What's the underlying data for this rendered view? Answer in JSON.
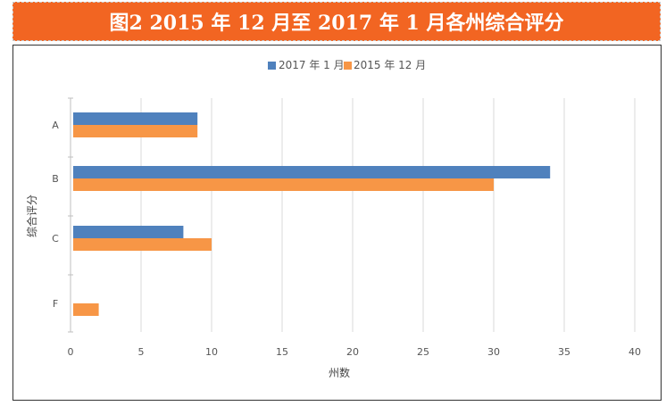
{
  "header": {
    "title": "图2  2015 年 12 月至 2017 年 1 月各州综合评分"
  },
  "colors": {
    "title_bg": "#f26522",
    "series_2017": "#4f81bd",
    "series_2015": "#f79646"
  },
  "chart_data": {
    "type": "bar",
    "orientation": "horizontal",
    "title": "图2  2015 年 12 月至 2017 年 1 月各州综合评分",
    "categories": [
      "A",
      "B",
      "C",
      "F"
    ],
    "series": [
      {
        "name": "2017 年 1 月",
        "values": [
          9,
          34,
          8,
          0
        ]
      },
      {
        "name": "2015 年 12 月",
        "values": [
          9,
          30,
          10,
          2
        ]
      }
    ],
    "xlabel": "州数",
    "ylabel": "综合评分",
    "xlim": [
      0,
      40
    ],
    "xticks": [
      0,
      5,
      10,
      15,
      20,
      25,
      30,
      35,
      40
    ],
    "grid": true,
    "legend_position": "top"
  }
}
